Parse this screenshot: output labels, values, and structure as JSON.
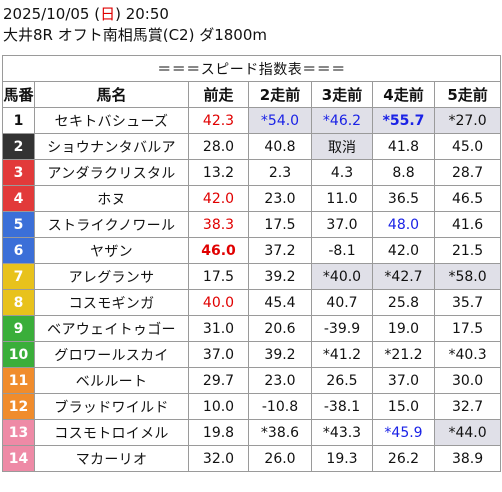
{
  "header": {
    "date_prefix": "2025/10/05 (",
    "weekday": "日",
    "date_suffix": ") 20:50",
    "race": "大井8R オフト南相馬賞(C2) ダ1800m"
  },
  "table": {
    "title": "＝＝＝スピード指数表＝＝＝",
    "columns": [
      "馬番",
      "馬名",
      "前走",
      "2走前",
      "3走前",
      "4走前",
      "5走前"
    ],
    "rows": [
      {
        "num": "1",
        "color": "#ffffff",
        "numColor": "#111111",
        "name": "セキトバシューズ",
        "cells": [
          {
            "v": "42.3",
            "c": "red"
          },
          {
            "v": "*54.0",
            "c": "blue",
            "s": 1
          },
          {
            "v": "*46.2",
            "c": "blue",
            "s": 1
          },
          {
            "v": "*55.7",
            "c": "blue",
            "s": 1,
            "b": 1
          },
          {
            "v": "*27.0",
            "s": 1
          }
        ]
      },
      {
        "num": "2",
        "color": "#333333",
        "numColor": "#ffffff",
        "name": "ショウナンタバルア",
        "cells": [
          {
            "v": "28.0"
          },
          {
            "v": "40.8"
          },
          {
            "v": "取消",
            "s": 1
          },
          {
            "v": "41.8"
          },
          {
            "v": "45.0"
          }
        ]
      },
      {
        "num": "3",
        "color": "#e23a3a",
        "numColor": "#ffffff",
        "name": "アンダラクリスタル",
        "cells": [
          {
            "v": "13.2"
          },
          {
            "v": "2.3"
          },
          {
            "v": "4.3"
          },
          {
            "v": "8.8"
          },
          {
            "v": "28.7"
          }
        ]
      },
      {
        "num": "4",
        "color": "#e23a3a",
        "numColor": "#ffffff",
        "name": "ホヌ",
        "cells": [
          {
            "v": "42.0",
            "c": "red"
          },
          {
            "v": "23.0"
          },
          {
            "v": "11.0"
          },
          {
            "v": "36.5"
          },
          {
            "v": "46.5"
          }
        ]
      },
      {
        "num": "5",
        "color": "#3b6fd8",
        "numColor": "#ffffff",
        "name": "ストライクノワール",
        "cells": [
          {
            "v": "38.3",
            "c": "red"
          },
          {
            "v": "17.5"
          },
          {
            "v": "37.0"
          },
          {
            "v": "48.0",
            "c": "blue"
          },
          {
            "v": "41.6"
          }
        ]
      },
      {
        "num": "6",
        "color": "#3b6fd8",
        "numColor": "#ffffff",
        "name": "ヤザン",
        "cells": [
          {
            "v": "46.0",
            "c": "red",
            "b": 1
          },
          {
            "v": "37.2"
          },
          {
            "v": "-8.1"
          },
          {
            "v": "42.0"
          },
          {
            "v": "21.5"
          }
        ]
      },
      {
        "num": "7",
        "color": "#e8c21c",
        "numColor": "#ffffff",
        "name": "アレグランサ",
        "cells": [
          {
            "v": "17.5"
          },
          {
            "v": "39.2"
          },
          {
            "v": "*40.0",
            "s": 1
          },
          {
            "v": "*42.7",
            "s": 1
          },
          {
            "v": "*58.0",
            "s": 1
          }
        ]
      },
      {
        "num": "8",
        "color": "#e8c21c",
        "numColor": "#ffffff",
        "name": "コスモギンガ",
        "cells": [
          {
            "v": "40.0",
            "c": "red"
          },
          {
            "v": "45.4"
          },
          {
            "v": "40.7"
          },
          {
            "v": "25.8"
          },
          {
            "v": "35.7"
          }
        ]
      },
      {
        "num": "9",
        "color": "#3aae3a",
        "numColor": "#ffffff",
        "name": "ベアウェイトゥゴー",
        "cells": [
          {
            "v": "31.0"
          },
          {
            "v": "20.6"
          },
          {
            "v": "-39.9"
          },
          {
            "v": "19.0"
          },
          {
            "v": "17.5"
          }
        ]
      },
      {
        "num": "10",
        "color": "#3aae3a",
        "numColor": "#ffffff",
        "name": "グロワールスカイ",
        "cells": [
          {
            "v": "37.0"
          },
          {
            "v": "39.2"
          },
          {
            "v": "*41.2"
          },
          {
            "v": "*21.2"
          },
          {
            "v": "*40.3"
          }
        ]
      },
      {
        "num": "11",
        "color": "#f08c2c",
        "numColor": "#ffffff",
        "name": "ベルルート",
        "cells": [
          {
            "v": "29.7"
          },
          {
            "v": "23.0"
          },
          {
            "v": "26.5"
          },
          {
            "v": "37.0"
          },
          {
            "v": "30.0"
          }
        ]
      },
      {
        "num": "12",
        "color": "#f08c2c",
        "numColor": "#ffffff",
        "name": "ブラッドワイルド",
        "cells": [
          {
            "v": "10.0"
          },
          {
            "v": "-10.8"
          },
          {
            "v": "-38.1"
          },
          {
            "v": "15.0"
          },
          {
            "v": "32.7"
          }
        ]
      },
      {
        "num": "13",
        "color": "#ee8aa6",
        "numColor": "#ffffff",
        "name": "コスモトロイメル",
        "cells": [
          {
            "v": "19.8"
          },
          {
            "v": "*38.6"
          },
          {
            "v": "*43.3"
          },
          {
            "v": "*45.9",
            "c": "blue"
          },
          {
            "v": "*44.0",
            "s": 1
          }
        ]
      },
      {
        "num": "14",
        "color": "#ee8aa6",
        "numColor": "#ffffff",
        "name": "マカーリオ",
        "cells": [
          {
            "v": "32.0"
          },
          {
            "v": "26.0"
          },
          {
            "v": "19.3"
          },
          {
            "v": "26.2"
          },
          {
            "v": "38.9"
          }
        ]
      }
    ]
  }
}
